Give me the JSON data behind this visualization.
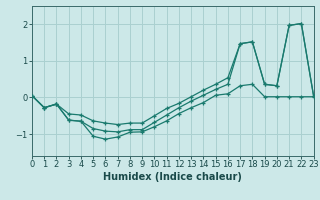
{
  "xlabel": "Humidex (Indice chaleur)",
  "bg_color": "#cce8e8",
  "grid_color": "#aad0d0",
  "line_color": "#1a7a6e",
  "xlim": [
    0,
    23
  ],
  "ylim": [
    -1.6,
    2.5
  ],
  "yticks": [
    -1,
    0,
    1,
    2
  ],
  "xticks": [
    0,
    1,
    2,
    3,
    4,
    5,
    6,
    7,
    8,
    9,
    10,
    11,
    12,
    13,
    14,
    15,
    16,
    17,
    18,
    19,
    20,
    21,
    22,
    23
  ],
  "curve1_x": [
    0,
    1,
    2,
    3,
    4,
    5,
    6,
    7,
    8,
    9,
    10,
    11,
    12,
    13,
    14,
    15,
    16,
    17,
    18,
    19,
    20,
    21,
    22,
    23
  ],
  "curve1_y": [
    0.05,
    -0.28,
    -0.18,
    -0.62,
    -0.65,
    -1.06,
    -1.14,
    -1.08,
    -0.95,
    -0.94,
    -0.8,
    -0.64,
    -0.44,
    -0.28,
    -0.14,
    0.06,
    0.1,
    0.32,
    0.36,
    0.02,
    0.02,
    0.02,
    0.02,
    0.02
  ],
  "curve2_x": [
    0,
    1,
    2,
    3,
    4,
    5,
    6,
    7,
    8,
    9,
    10,
    11,
    12,
    13,
    14,
    15,
    16,
    17,
    18,
    19,
    20,
    21,
    22,
    23
  ],
  "curve2_y": [
    0.05,
    -0.28,
    -0.18,
    -0.62,
    -0.65,
    -0.85,
    -0.92,
    -0.94,
    -0.88,
    -0.88,
    -0.68,
    -0.48,
    -0.28,
    -0.1,
    0.06,
    0.22,
    0.36,
    1.47,
    1.52,
    0.36,
    0.32,
    1.97,
    2.02,
    0.04
  ],
  "curve3_x": [
    0,
    1,
    2,
    3,
    4,
    5,
    6,
    7,
    8,
    9,
    10,
    11,
    12,
    13,
    14,
    15,
    16,
    17,
    18,
    19,
    20,
    21,
    22,
    23
  ],
  "curve3_y": [
    0.05,
    -0.28,
    -0.18,
    -0.45,
    -0.48,
    -0.64,
    -0.7,
    -0.74,
    -0.7,
    -0.7,
    -0.5,
    -0.3,
    -0.16,
    0.02,
    0.2,
    0.36,
    0.54,
    1.47,
    1.52,
    0.36,
    0.32,
    1.97,
    2.02,
    0.04
  ],
  "tick_fontsize": 6,
  "xlabel_fontsize": 7,
  "tick_color": "#1a4a4a",
  "spine_color": "#3a6a6a"
}
